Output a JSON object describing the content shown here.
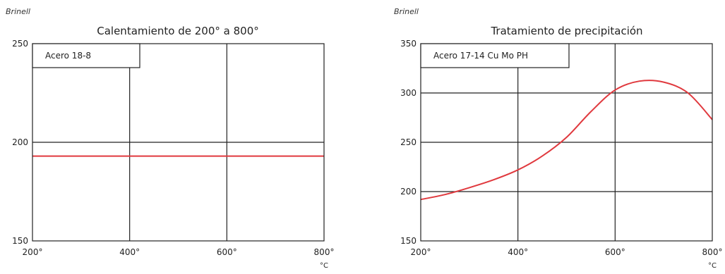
{
  "chart_data": [
    {
      "type": "line",
      "title": "Calentamiento de 200° a 800°",
      "ylabel": "Brinell",
      "xunit": "°C",
      "xlim": [
        200,
        800
      ],
      "ylim": [
        150,
        250
      ],
      "xticks": [
        "200°",
        "400°",
        "600°",
        "800°"
      ],
      "yticks": [
        "150",
        "200",
        "250"
      ],
      "legend_label": "Acero 18-8",
      "legend_position": "top-left",
      "grid": true,
      "line_color": "#e0393e",
      "series": [
        {
          "x": [
            200,
            800
          ],
          "y": [
            193,
            193
          ]
        }
      ]
    },
    {
      "type": "line",
      "title": "Tratamiento de precipitación",
      "ylabel": "Brinell",
      "xunit": "°C",
      "xlim": [
        200,
        800
      ],
      "ylim": [
        150,
        350
      ],
      "xticks": [
        "200°",
        "400°",
        "600°",
        "800°"
      ],
      "yticks": [
        "150",
        "200",
        "250",
        "300",
        "350"
      ],
      "legend_label": "Acero 17-14 Cu Mo PH",
      "legend_position": "top-left",
      "grid": true,
      "line_color": "#e0393e",
      "series": [
        {
          "x": [
            200,
            250,
            300,
            350,
            400,
            450,
            500,
            550,
            600,
            650,
            700,
            750,
            800
          ],
          "y": [
            192,
            197,
            204,
            212,
            222,
            236,
            255,
            281,
            303,
            312,
            311,
            300,
            273
          ]
        }
      ]
    }
  ]
}
